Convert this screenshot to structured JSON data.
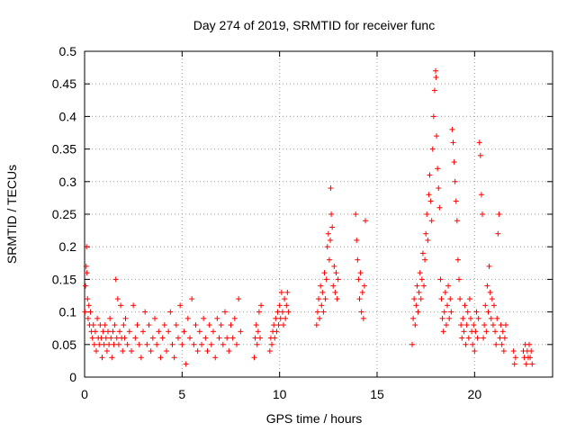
{
  "chart_data": {
    "type": "scatter",
    "title": "Day 274 of 2019, SRMTID for receiver func",
    "xlabel": "GPS time / hours",
    "ylabel": "SRMTID / TECUs",
    "xlim": [
      0,
      24
    ],
    "ylim": [
      0,
      0.5
    ],
    "x_ticks": [
      0,
      5,
      10,
      15,
      20
    ],
    "y_ticks": [
      0,
      0.05,
      0.1,
      0.15,
      0.2,
      0.25,
      0.3,
      0.35,
      0.4,
      0.45,
      0.5
    ],
    "x_tick_labels": [
      "0",
      "5",
      "10",
      "15",
      "20"
    ],
    "y_tick_labels": [
      "0",
      "0.05",
      "0.1",
      "0.15",
      "0.2",
      "0.25",
      "0.3",
      "0.35",
      "0.4",
      "0.45",
      "0.5"
    ],
    "grid": true,
    "marker": "+",
    "color": "#ff0000",
    "series": [
      {
        "points": [
          [
            0.02,
            0.1
          ],
          [
            0.05,
            0.14
          ],
          [
            0.08,
            0.17
          ],
          [
            0.1,
            0.2
          ],
          [
            0.12,
            0.16
          ],
          [
            0.15,
            0.12
          ],
          [
            0.18,
            0.09
          ],
          [
            0.22,
            0.11
          ],
          [
            0.25,
            0.08
          ],
          [
            0.3,
            0.1
          ],
          [
            0.35,
            0.07
          ],
          [
            0.4,
            0.06
          ],
          [
            0.45,
            0.08
          ],
          [
            0.5,
            0.05
          ],
          [
            0.55,
            0.07
          ],
          [
            0.6,
            0.04
          ],
          [
            0.65,
            0.09
          ],
          [
            0.7,
            0.06
          ],
          [
            0.75,
            0.05
          ],
          [
            0.8,
            0.08
          ],
          [
            0.85,
            0.06
          ],
          [
            0.9,
            0.03
          ],
          [
            0.95,
            0.07
          ],
          [
            1.0,
            0.05
          ],
          [
            1.05,
            0.08
          ],
          [
            1.1,
            0.06
          ],
          [
            1.15,
            0.04
          ],
          [
            1.2,
            0.07
          ],
          [
            1.25,
            0.05
          ],
          [
            1.3,
            0.09
          ],
          [
            1.35,
            0.06
          ],
          [
            1.4,
            0.03
          ],
          [
            1.45,
            0.07
          ],
          [
            1.5,
            0.05
          ],
          [
            1.55,
            0.08
          ],
          [
            1.6,
            0.15
          ],
          [
            1.65,
            0.06
          ],
          [
            1.7,
            0.12
          ],
          [
            1.75,
            0.05
          ],
          [
            1.8,
            0.07
          ],
          [
            1.85,
            0.11
          ],
          [
            1.9,
            0.06
          ],
          [
            1.95,
            0.04
          ],
          [
            2.0,
            0.08
          ],
          [
            2.05,
            0.06
          ],
          [
            2.1,
            0.09
          ],
          [
            2.2,
            0.05
          ],
          [
            2.3,
            0.07
          ],
          [
            2.4,
            0.04
          ],
          [
            2.5,
            0.11
          ],
          [
            2.6,
            0.06
          ],
          [
            2.7,
            0.08
          ],
          [
            2.8,
            0.05
          ],
          [
            2.9,
            0.03
          ],
          [
            3.0,
            0.07
          ],
          [
            3.1,
            0.1
          ],
          [
            3.2,
            0.05
          ],
          [
            3.3,
            0.08
          ],
          [
            3.4,
            0.04
          ],
          [
            3.5,
            0.06
          ],
          [
            3.6,
            0.09
          ],
          [
            3.7,
            0.05
          ],
          [
            3.8,
            0.07
          ],
          [
            3.9,
            0.03
          ],
          [
            4.0,
            0.06
          ],
          [
            4.1,
            0.08
          ],
          [
            4.2,
            0.04
          ],
          [
            4.3,
            0.07
          ],
          [
            4.4,
            0.1
          ],
          [
            4.5,
            0.05
          ],
          [
            4.6,
            0.03
          ],
          [
            4.7,
            0.08
          ],
          [
            4.8,
            0.06
          ],
          [
            4.9,
            0.11
          ],
          [
            5.0,
            0.05
          ],
          [
            5.1,
            0.07
          ],
          [
            5.2,
            0.02
          ],
          [
            5.3,
            0.09
          ],
          [
            5.4,
            0.06
          ],
          [
            5.5,
            0.12
          ],
          [
            5.6,
            0.05
          ],
          [
            5.7,
            0.08
          ],
          [
            5.8,
            0.04
          ],
          [
            5.9,
            0.07
          ],
          [
            6.0,
            0.05
          ],
          [
            6.1,
            0.09
          ],
          [
            6.2,
            0.06
          ],
          [
            6.3,
            0.04
          ],
          [
            6.4,
            0.08
          ],
          [
            6.5,
            0.05
          ],
          [
            6.6,
            0.07
          ],
          [
            6.7,
            0.03
          ],
          [
            6.8,
            0.09
          ],
          [
            6.9,
            0.06
          ],
          [
            7.0,
            0.08
          ],
          [
            7.1,
            0.05
          ],
          [
            7.2,
            0.1
          ],
          [
            7.3,
            0.06
          ],
          [
            7.4,
            0.04
          ],
          [
            7.5,
            0.08
          ],
          [
            7.6,
            0.06
          ],
          [
            7.7,
            0.09
          ],
          [
            7.8,
            0.05
          ],
          [
            7.9,
            0.12
          ],
          [
            8.0,
            0.07
          ],
          [
            8.7,
            0.03
          ],
          [
            8.75,
            0.06
          ],
          [
            8.8,
            0.08
          ],
          [
            8.85,
            0.05
          ],
          [
            8.9,
            0.07
          ],
          [
            8.95,
            0.1
          ],
          [
            9.0,
            0.06
          ],
          [
            9.05,
            0.11
          ],
          [
            9.5,
            0.04
          ],
          [
            9.55,
            0.06
          ],
          [
            9.6,
            0.05
          ],
          [
            9.65,
            0.07
          ],
          [
            9.7,
            0.08
          ],
          [
            9.75,
            0.06
          ],
          [
            9.8,
            0.09
          ],
          [
            9.85,
            0.07
          ],
          [
            9.9,
            0.1
          ],
          [
            9.95,
            0.08
          ],
          [
            10.0,
            0.11
          ],
          [
            10.05,
            0.09
          ],
          [
            10.1,
            0.13
          ],
          [
            10.15,
            0.1
          ],
          [
            10.2,
            0.08
          ],
          [
            10.25,
            0.12
          ],
          [
            10.3,
            0.09
          ],
          [
            10.35,
            0.11
          ],
          [
            10.4,
            0.13
          ],
          [
            10.45,
            0.1
          ],
          [
            11.9,
            0.08
          ],
          [
            11.95,
            0.1
          ],
          [
            12.0,
            0.12
          ],
          [
            12.05,
            0.09
          ],
          [
            12.1,
            0.14
          ],
          [
            12.15,
            0.11
          ],
          [
            12.2,
            0.13
          ],
          [
            12.25,
            0.1
          ],
          [
            12.3,
            0.16
          ],
          [
            12.35,
            0.12
          ],
          [
            12.4,
            0.15
          ],
          [
            12.45,
            0.2
          ],
          [
            12.5,
            0.22
          ],
          [
            12.55,
            0.18
          ],
          [
            12.6,
            0.21
          ],
          [
            12.62,
            0.29
          ],
          [
            12.65,
            0.25
          ],
          [
            12.7,
            0.23
          ],
          [
            12.75,
            0.14
          ],
          [
            12.8,
            0.17
          ],
          [
            12.85,
            0.13
          ],
          [
            12.9,
            0.16
          ],
          [
            12.95,
            0.12
          ],
          [
            13.0,
            0.15
          ],
          [
            13.9,
            0.25
          ],
          [
            13.95,
            0.21
          ],
          [
            14.0,
            0.18
          ],
          [
            14.05,
            0.15
          ],
          [
            14.1,
            0.12
          ],
          [
            14.15,
            0.16
          ],
          [
            14.2,
            0.1
          ],
          [
            14.25,
            0.13
          ],
          [
            14.3,
            0.09
          ],
          [
            14.35,
            0.14
          ],
          [
            14.4,
            0.24
          ],
          [
            16.8,
            0.05
          ],
          [
            16.85,
            0.09
          ],
          [
            16.9,
            0.12
          ],
          [
            16.95,
            0.08
          ],
          [
            17.0,
            0.11
          ],
          [
            17.05,
            0.14
          ],
          [
            17.1,
            0.1
          ],
          [
            17.15,
            0.13
          ],
          [
            17.2,
            0.16
          ],
          [
            17.25,
            0.12
          ],
          [
            17.3,
            0.15
          ],
          [
            17.35,
            0.19
          ],
          [
            17.4,
            0.14
          ],
          [
            17.45,
            0.18
          ],
          [
            17.5,
            0.22
          ],
          [
            17.55,
            0.25
          ],
          [
            17.6,
            0.21
          ],
          [
            17.65,
            0.28
          ],
          [
            17.7,
            0.31
          ],
          [
            17.75,
            0.27
          ],
          [
            17.8,
            0.24
          ],
          [
            17.85,
            0.35
          ],
          [
            17.9,
            0.4
          ],
          [
            17.95,
            0.44
          ],
          [
            18.0,
            0.47
          ],
          [
            18.02,
            0.46
          ],
          [
            18.05,
            0.37
          ],
          [
            18.1,
            0.32
          ],
          [
            18.15,
            0.29
          ],
          [
            18.2,
            0.26
          ],
          [
            18.25,
            0.15
          ],
          [
            18.3,
            0.12
          ],
          [
            18.35,
            0.09
          ],
          [
            18.4,
            0.07
          ],
          [
            18.45,
            0.1
          ],
          [
            18.5,
            0.13
          ],
          [
            18.55,
            0.08
          ],
          [
            18.6,
            0.11
          ],
          [
            18.65,
            0.14
          ],
          [
            18.7,
            0.09
          ],
          [
            18.75,
            0.12
          ],
          [
            18.8,
            0.1
          ],
          [
            18.85,
            0.38
          ],
          [
            18.9,
            0.36
          ],
          [
            18.95,
            0.33
          ],
          [
            19.0,
            0.3
          ],
          [
            19.05,
            0.27
          ],
          [
            19.1,
            0.24
          ],
          [
            19.15,
            0.18
          ],
          [
            19.2,
            0.15
          ],
          [
            19.25,
            0.12
          ],
          [
            19.3,
            0.08
          ],
          [
            19.35,
            0.06
          ],
          [
            19.4,
            0.09
          ],
          [
            19.45,
            0.07
          ],
          [
            19.5,
            0.11
          ],
          [
            19.55,
            0.05
          ],
          [
            19.6,
            0.08
          ],
          [
            19.65,
            0.1
          ],
          [
            19.7,
            0.06
          ],
          [
            19.75,
            0.12
          ],
          [
            19.8,
            0.09
          ],
          [
            19.85,
            0.07
          ],
          [
            19.9,
            0.05
          ],
          [
            19.95,
            0.08
          ],
          [
            20.0,
            0.04
          ],
          [
            20.05,
            0.07
          ],
          [
            20.1,
            0.1
          ],
          [
            20.15,
            0.06
          ],
          [
            20.2,
            0.09
          ],
          [
            20.25,
            0.36
          ],
          [
            20.3,
            0.34
          ],
          [
            20.35,
            0.28
          ],
          [
            20.4,
            0.25
          ],
          [
            20.45,
            0.06
          ],
          [
            20.5,
            0.08
          ],
          [
            20.55,
            0.11
          ],
          [
            20.6,
            0.07
          ],
          [
            20.65,
            0.14
          ],
          [
            20.7,
            0.1
          ],
          [
            20.75,
            0.17
          ],
          [
            20.8,
            0.13
          ],
          [
            20.85,
            0.09
          ],
          [
            20.9,
            0.12
          ],
          [
            20.95,
            0.08
          ],
          [
            21.0,
            0.11
          ],
          [
            21.05,
            0.07
          ],
          [
            21.1,
            0.05
          ],
          [
            21.15,
            0.09
          ],
          [
            21.2,
            0.22
          ],
          [
            21.25,
            0.25
          ],
          [
            21.3,
            0.06
          ],
          [
            21.35,
            0.08
          ],
          [
            21.4,
            0.05
          ],
          [
            21.45,
            0.07
          ],
          [
            21.5,
            0.04
          ],
          [
            21.55,
            0.06
          ],
          [
            21.6,
            0.08
          ],
          [
            22.0,
            0.04
          ],
          [
            22.05,
            0.02
          ],
          [
            22.1,
            0.03
          ],
          [
            22.5,
            0.04
          ],
          [
            22.55,
            0.03
          ],
          [
            22.6,
            0.05
          ],
          [
            22.65,
            0.02
          ],
          [
            22.7,
            0.04
          ],
          [
            22.75,
            0.03
          ],
          [
            22.8,
            0.05
          ],
          [
            22.85,
            0.03
          ],
          [
            22.9,
            0.04
          ],
          [
            22.95,
            0.02
          ]
        ]
      }
    ]
  }
}
